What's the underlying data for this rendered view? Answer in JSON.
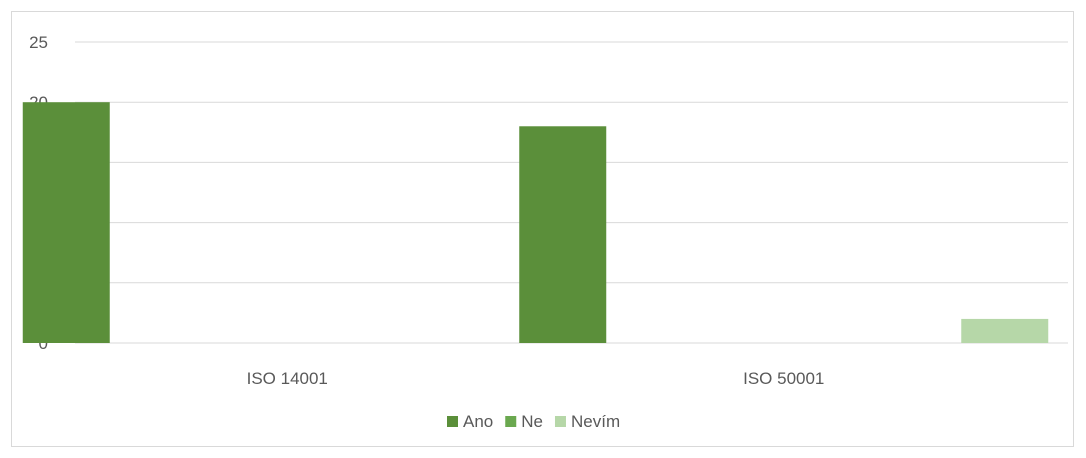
{
  "chart_data": {
    "type": "bar",
    "title": "",
    "xlabel": "",
    "ylabel": "",
    "categories": [
      "ISO 14001",
      "ISO 50001"
    ],
    "series": [
      {
        "name": "Ano",
        "values": [
          20,
          18
        ],
        "color": "#5b8f3a"
      },
      {
        "name": "Ne",
        "values": [
          0,
          0
        ],
        "color": "#6aa84f"
      },
      {
        "name": "Nevím",
        "values": [
          0,
          2
        ],
        "color": "#b6d7a8"
      }
    ],
    "ylim": [
      0,
      25
    ],
    "yticks": [
      "0",
      "5",
      "10",
      "15",
      "20",
      "25"
    ],
    "grid": true,
    "legend_position": "bottom"
  }
}
